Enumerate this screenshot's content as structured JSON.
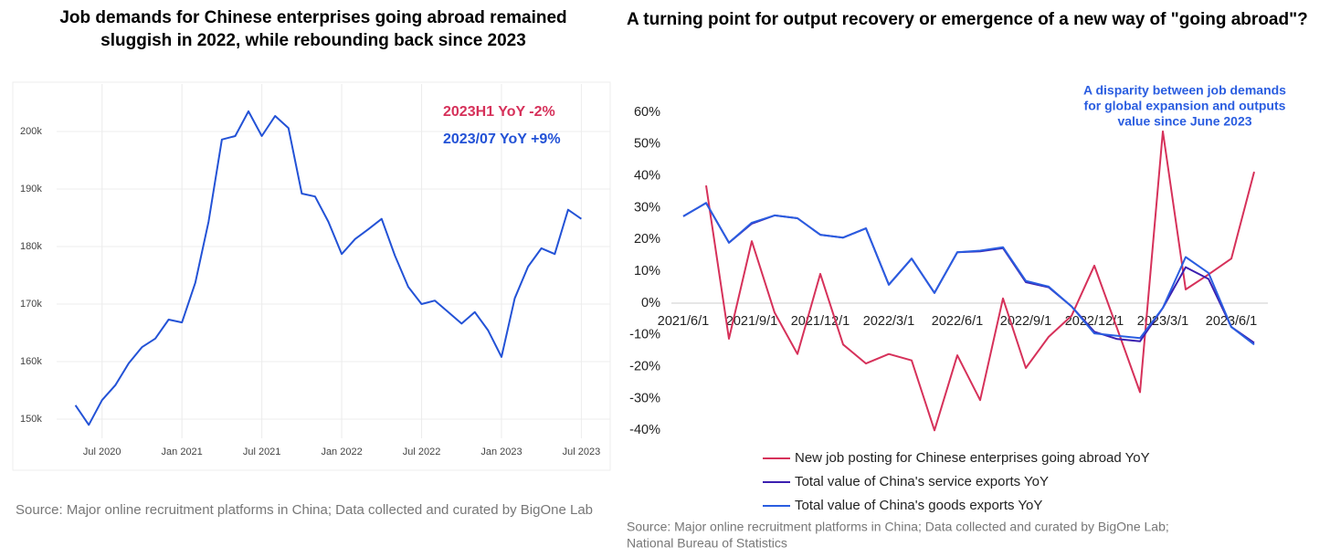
{
  "chart_data": [
    {
      "type": "line",
      "title": [
        "Job demands for Chinese enterprises going abroad remained",
        "sluggish in 2022, while rebounding back since 2023"
      ],
      "x": [
        "2020-05",
        "2020-06",
        "2020-07",
        "2020-08",
        "2020-09",
        "2020-10",
        "2020-11",
        "2020-12",
        "2021-01",
        "2021-02",
        "2021-03",
        "2021-04",
        "2021-05",
        "2021-06",
        "2021-07",
        "2021-08",
        "2021-09",
        "2021-10",
        "2021-11",
        "2021-12",
        "2022-01",
        "2022-02",
        "2022-03",
        "2022-04",
        "2022-05",
        "2022-06",
        "2022-07",
        "2022-08",
        "2022-09",
        "2022-10",
        "2022-11",
        "2022-12",
        "2023-01",
        "2023-02",
        "2023-03",
        "2023-04",
        "2023-05",
        "2023-06",
        "2023-07"
      ],
      "series": [
        {
          "color": "#2352d6",
          "values": [
            152400,
            149000,
            153300,
            155900,
            159700,
            162500,
            164000,
            167300,
            166800,
            173700,
            184300,
            198600,
            199200,
            203500,
            199200,
            202700,
            200600,
            189200,
            188700,
            184300,
            178700,
            181300,
            183000,
            184800,
            178400,
            173000,
            170000,
            170600,
            168600,
            166600,
            168600,
            165400,
            160800,
            171000,
            176500,
            179700,
            178700,
            186400,
            184800
          ]
        }
      ],
      "xlim": [
        "2020-04",
        "2023-08"
      ],
      "xticks": [
        {
          "value": "2020-07",
          "label": "Jul 2020"
        },
        {
          "value": "2021-01",
          "label": "Jan 2021"
        },
        {
          "value": "2021-07",
          "label": "Jul 2021"
        },
        {
          "value": "2022-01",
          "label": "Jan 2022"
        },
        {
          "value": "2022-07",
          "label": "Jul 2022"
        },
        {
          "value": "2023-01",
          "label": "Jan 2023"
        },
        {
          "value": "2023-07",
          "label": "Jul 2023"
        }
      ],
      "ylim": [
        146500,
        208000
      ],
      "yticks": [
        {
          "value": 150000,
          "label": "150k"
        },
        {
          "value": 160000,
          "label": "160k"
        },
        {
          "value": 170000,
          "label": "170k"
        },
        {
          "value": 180000,
          "label": "180k"
        },
        {
          "value": 190000,
          "label": "190k"
        },
        {
          "value": 200000,
          "label": "200k"
        }
      ],
      "grid": true,
      "annotations": [
        {
          "text": "2023H1 YoY -2%",
          "color": "#d6315a"
        },
        {
          "text": "2023/07 YoY +9%",
          "color": "#2352d6"
        }
      ],
      "source": [
        "Source: Major online recruitment platforms in China; Data collected and curated by BigOne Lab"
      ]
    },
    {
      "type": "line",
      "title": [
        "A turning point for output recovery or emergence of a new way of \"going abroad\"?"
      ],
      "categories": [
        "2021/6/1",
        null,
        null,
        "2021/9/1",
        null,
        null,
        "2021/12/1",
        null,
        null,
        "2022/3/1",
        null,
        null,
        "2022/6/1",
        null,
        null,
        "2022/9/1",
        null,
        null,
        "2022/12/1",
        null,
        null,
        "2023/3/1",
        null,
        null,
        "2023/6/1",
        null
      ],
      "series": [
        {
          "name": "New job posting for Chinese enterprises going abroad YoY",
          "color": "#d6315a",
          "values": [
            null,
            37,
            -11.2,
            19.5,
            -3,
            -16,
            9.2,
            -13,
            -19,
            -16,
            -18,
            -40,
            -16.4,
            -30.5,
            1.5,
            -20.4,
            -10.6,
            -4,
            11.8,
            -8,
            -28,
            54,
            4.3,
            9,
            14,
            41.3
          ]
        },
        {
          "name": "Total value of China's service exports YoY",
          "color": "#3b1fb0",
          "values": [
            27.3,
            31.5,
            19,
            25,
            27.6,
            26.7,
            21.5,
            20.6,
            23.5,
            5.8,
            14,
            3.2,
            16,
            16.3,
            17.3,
            6.6,
            5,
            -1,
            -9,
            -11.3,
            -12,
            -1.5,
            11.3,
            7.6,
            -7.5,
            -12.5
          ]
        },
        {
          "name": "Total value of China's goods exports YoY",
          "color": "#2a5de0",
          "values": [
            27.3,
            31.5,
            19,
            25.3,
            27.6,
            26.7,
            21.5,
            20.6,
            23.5,
            5.8,
            14,
            3.2,
            16,
            16.5,
            17.6,
            7,
            5.2,
            -1,
            -9.5,
            -10.3,
            -11,
            -1.5,
            14.5,
            9.5,
            -7.5,
            -13
          ]
        }
      ],
      "ylim": [
        -45,
        65
      ],
      "yticks": [
        {
          "value": -40,
          "label": "-40%"
        },
        {
          "value": -30,
          "label": "-30%"
        },
        {
          "value": -20,
          "label": "-20%"
        },
        {
          "value": -10,
          "label": "-10%"
        },
        {
          "value": 0,
          "label": "0%"
        },
        {
          "value": 10,
          "label": "10%"
        },
        {
          "value": 20,
          "label": "20%"
        },
        {
          "value": 30,
          "label": "30%"
        },
        {
          "value": 40,
          "label": "40%"
        },
        {
          "value": 50,
          "label": "50%"
        },
        {
          "value": 60,
          "label": "60%"
        }
      ],
      "annotations": [
        {
          "text": [
            "A disparity between job demands",
            "for global expansion and outputs",
            "value since June 2023"
          ],
          "color": "#2a5de0"
        }
      ],
      "legend": "bottom",
      "source": [
        "Source: Major online recruitment platforms in China; Data collected and curated by BigOne Lab;",
        "National Bureau of Statistics"
      ]
    }
  ]
}
